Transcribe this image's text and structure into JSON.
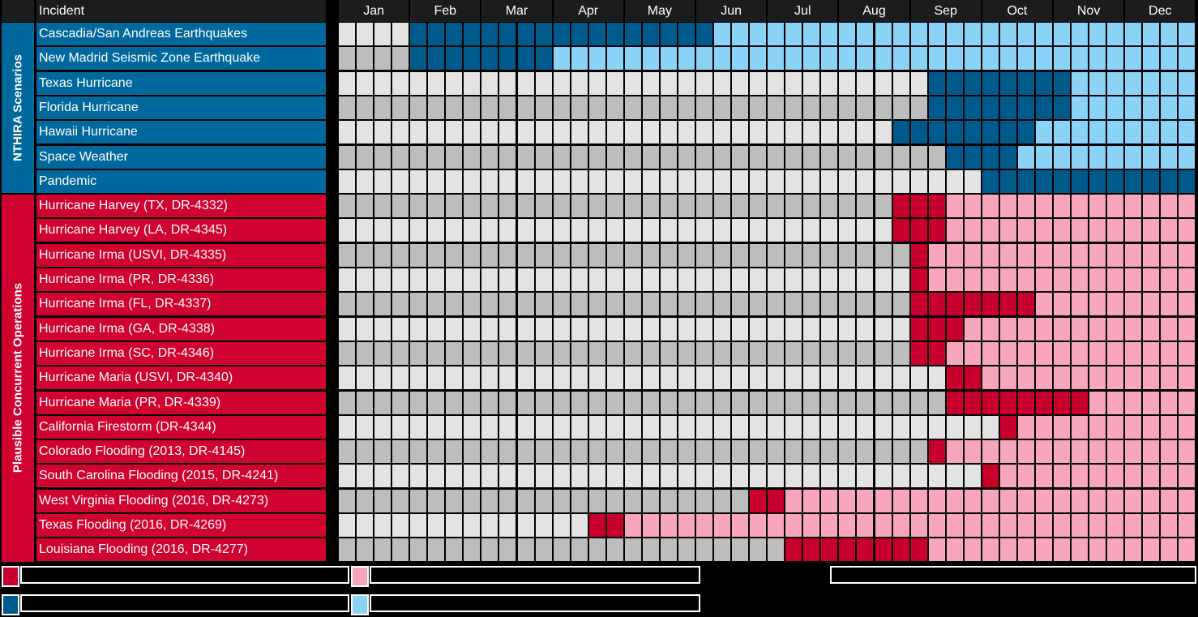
{
  "chart_data": {
    "type": "heatmap",
    "header_label": "Incident",
    "months": [
      "Jan",
      "Feb",
      "Mar",
      "Apr",
      "May",
      "Jun",
      "Jul",
      "Aug",
      "Sep",
      "Oct",
      "Nov",
      "Dec"
    ],
    "weeks_per_month": 4,
    "groups": [
      {
        "label": "NTHIRA Scenarios",
        "theme": "blue",
        "rows": [
          {
            "name": "Cascadia/San Andreas Earthquakes",
            "active_weeks": [
              5,
              21
            ]
          },
          {
            "name": "New Madrid Seismic Zone Earthquake",
            "active_weeks": [
              5,
              12
            ]
          },
          {
            "name": "Texas Hurricane",
            "active_weeks": [
              34,
              41
            ]
          },
          {
            "name": "Florida Hurricane",
            "active_weeks": [
              34,
              41
            ]
          },
          {
            "name": "Hawaii Hurricane",
            "active_weeks": [
              32,
              39
            ]
          },
          {
            "name": "Space Weather",
            "active_weeks": [
              35,
              38
            ]
          },
          {
            "name": "Pandemic",
            "active_weeks": [
              37,
              48
            ]
          }
        ]
      },
      {
        "label": "Plausible Concurrent Operations",
        "theme": "red",
        "rows": [
          {
            "name": "Hurricane Harvey (TX, DR-4332)",
            "active_weeks": [
              32,
              34
            ]
          },
          {
            "name": "Hurricane Harvey (LA, DR-4345)",
            "active_weeks": [
              32,
              34
            ]
          },
          {
            "name": "Hurricane Irma (USVI, DR-4335)",
            "active_weeks": [
              33,
              33
            ]
          },
          {
            "name": "Hurricane Irma (PR, DR-4336)",
            "active_weeks": [
              33,
              33
            ]
          },
          {
            "name": "Hurricane Irma (FL, DR-4337)",
            "active_weeks": [
              33,
              39
            ]
          },
          {
            "name": "Hurricane Irma (GA, DR-4338)",
            "active_weeks": [
              33,
              35
            ]
          },
          {
            "name": "Hurricane Irma (SC, DR-4346)",
            "active_weeks": [
              33,
              34
            ]
          },
          {
            "name": "Hurricane Maria (USVI, DR-4340)",
            "active_weeks": [
              35,
              36
            ]
          },
          {
            "name": "Hurricane Maria (PR, DR-4339)",
            "active_weeks": [
              35,
              42
            ]
          },
          {
            "name": "California Firestorm (DR-4344)",
            "active_weeks": [
              38,
              38
            ]
          },
          {
            "name": "Colorado Flooding (2013, DR-4145)",
            "active_weeks": [
              34,
              34
            ]
          },
          {
            "name": "South Carolina Flooding (2015, DR-4241)",
            "active_weeks": [
              37,
              37
            ]
          },
          {
            "name": "West Virginia Flooding (2016, DR-4273)",
            "active_weeks": [
              24,
              25
            ]
          },
          {
            "name": "Texas Flooding (2016, DR-4269)",
            "active_weeks": [
              15,
              16
            ]
          },
          {
            "name": "Louisiana Flooding (2016, DR-4277)",
            "active_weeks": [
              26,
              33
            ]
          }
        ]
      }
    ],
    "colors": {
      "blue_active": "#005a8c",
      "blue_after": "#8bd2f7",
      "blue_label": "#00689c",
      "red_active": "#c8002d",
      "red_after": "#f7a6bc",
      "red_label": "#d0022f",
      "before_light": "#e3e3e3",
      "before_dark": "#bdbdbd"
    },
    "legend": [
      {
        "swatch_color": "#c8002d",
        "text": ""
      },
      {
        "swatch_color": "#f7a6bc",
        "text": ""
      },
      {
        "swatch_color": "#005a8c",
        "text": ""
      },
      {
        "swatch_color": "#8bd2f7",
        "text": ""
      },
      {
        "swatch_color": "",
        "text": ""
      }
    ]
  }
}
